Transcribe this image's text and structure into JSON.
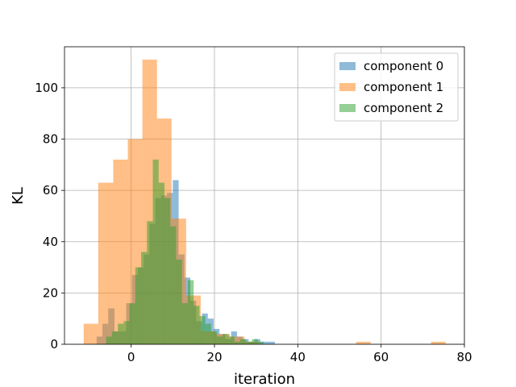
{
  "chart_data": {
    "type": "histogram",
    "title": "",
    "xlabel": "iteration",
    "ylabel": "KL",
    "xlim": [
      -16,
      80
    ],
    "ylim": [
      0,
      116
    ],
    "xticks": [
      0,
      20,
      40,
      60,
      80
    ],
    "yticks": [
      0,
      20,
      40,
      60,
      80,
      100
    ],
    "grid": true,
    "legend_position": "top-right",
    "series": [
      {
        "name": "component 0",
        "color": "#1f77b4",
        "alpha": 0.5,
        "bins": [
          [
            -8.3,
            -6.9,
            3
          ],
          [
            -6.9,
            -5.5,
            8
          ],
          [
            -5.5,
            -4.0,
            14
          ],
          [
            -4.0,
            -2.6,
            5
          ],
          [
            -2.6,
            -1.2,
            5
          ],
          [
            -1.2,
            0.2,
            16
          ],
          [
            0.2,
            1.6,
            27
          ],
          [
            1.6,
            3.0,
            30
          ],
          [
            3.0,
            4.4,
            35
          ],
          [
            4.4,
            5.8,
            47
          ],
          [
            5.8,
            7.2,
            57
          ],
          [
            7.2,
            8.6,
            58
          ],
          [
            8.6,
            10.0,
            59
          ],
          [
            10.0,
            11.4,
            64
          ],
          [
            11.4,
            12.8,
            35
          ],
          [
            12.8,
            14.2,
            26
          ],
          [
            14.2,
            15.6,
            17
          ],
          [
            15.6,
            17.0,
            9
          ],
          [
            17.0,
            18.4,
            12
          ],
          [
            18.4,
            19.8,
            10
          ],
          [
            19.8,
            21.2,
            6
          ],
          [
            21.2,
            22.6,
            4
          ],
          [
            22.6,
            24.0,
            2
          ],
          [
            24.0,
            25.4,
            5
          ],
          [
            25.4,
            26.8,
            3
          ],
          [
            26.8,
            28.2,
            2
          ],
          [
            28.2,
            29.6,
            1
          ],
          [
            29.6,
            31.0,
            2
          ],
          [
            31.0,
            34.5,
            1
          ]
        ]
      },
      {
        "name": "component 1",
        "color": "#ff7f0e",
        "alpha": 0.5,
        "bins": [
          [
            -11.4,
            -7.9,
            8
          ],
          [
            -7.9,
            -4.3,
            63
          ],
          [
            -4.3,
            -0.8,
            72
          ],
          [
            -0.8,
            2.7,
            80
          ],
          [
            2.7,
            6.2,
            111
          ],
          [
            6.2,
            9.7,
            88
          ],
          [
            9.7,
            13.2,
            49
          ],
          [
            13.2,
            16.7,
            19
          ],
          [
            16.7,
            20.2,
            5
          ],
          [
            20.2,
            23.7,
            4
          ],
          [
            23.7,
            27.2,
            3
          ],
          [
            27.2,
            30.7,
            1
          ],
          [
            30.7,
            34.2,
            0
          ],
          [
            54.0,
            57.5,
            1
          ],
          [
            72.0,
            75.5,
            1
          ]
        ]
      },
      {
        "name": "component 2",
        "color": "#2ca02c",
        "alpha": 0.5,
        "bins": [
          [
            -6.0,
            -4.6,
            3
          ],
          [
            -4.6,
            -3.2,
            5
          ],
          [
            -3.2,
            -1.8,
            8
          ],
          [
            -1.8,
            -0.4,
            9
          ],
          [
            -0.4,
            1.0,
            16
          ],
          [
            1.0,
            2.4,
            30
          ],
          [
            2.4,
            3.8,
            36
          ],
          [
            3.8,
            5.2,
            48
          ],
          [
            5.2,
            6.6,
            72
          ],
          [
            6.6,
            8.0,
            63
          ],
          [
            8.0,
            9.4,
            57
          ],
          [
            9.4,
            10.8,
            46
          ],
          [
            10.8,
            12.2,
            33
          ],
          [
            12.2,
            13.6,
            16
          ],
          [
            13.6,
            15.0,
            25
          ],
          [
            15.0,
            16.4,
            15
          ],
          [
            16.4,
            17.8,
            11
          ],
          [
            17.8,
            19.2,
            8
          ],
          [
            19.2,
            20.6,
            5
          ],
          [
            20.6,
            22.0,
            3
          ],
          [
            22.0,
            23.4,
            4
          ],
          [
            23.4,
            24.8,
            3
          ],
          [
            24.8,
            26.2,
            1
          ],
          [
            26.2,
            27.6,
            2
          ],
          [
            27.6,
            29.0,
            1
          ],
          [
            29.0,
            30.4,
            2
          ],
          [
            30.4,
            31.8,
            1
          ]
        ]
      }
    ]
  }
}
